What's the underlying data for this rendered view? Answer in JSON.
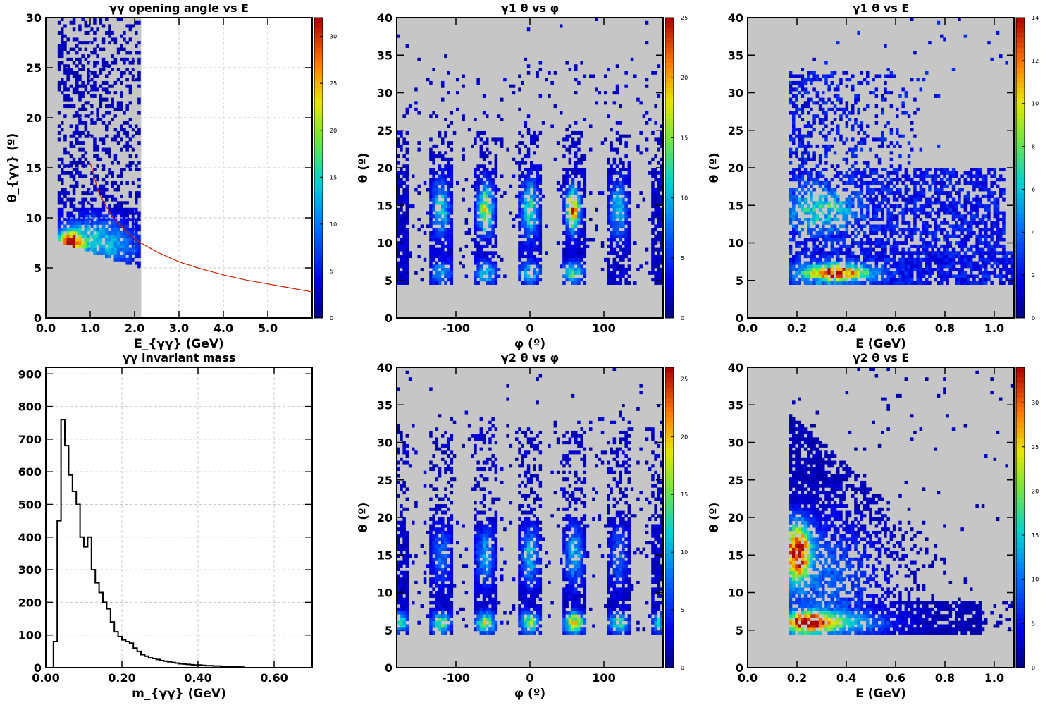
{
  "chart_data": [
    {
      "type": "heatmap",
      "title": "γγ opening angle vs E",
      "xlabel": "E_{γγ} (GeV)",
      "ylabel": "θ_{γγ} (º)",
      "xlim": [
        0,
        6
      ],
      "ylim": [
        0,
        30
      ],
      "xticks": [
        "0.0",
        "1.0",
        "2.0",
        "3.0",
        "4.0",
        "5.0"
      ],
      "yticks": [
        "0",
        "5",
        "10",
        "15",
        "20",
        "25",
        "30"
      ],
      "zmax": 32,
      "zticks": [
        "0",
        "5",
        "10",
        "15",
        "20",
        "25",
        "30"
      ],
      "filled_region": {
        "x": [
          0,
          2.15
        ]
      },
      "curve": {
        "color": "#cc2200",
        "x": [
          1.0,
          1.2,
          1.5,
          1.8,
          2.1,
          2.5,
          3.0,
          3.5,
          4.0,
          4.5,
          5.0,
          5.5,
          6.0
        ],
        "y": [
          15.5,
          12.4,
          10.1,
          8.7,
          7.6,
          6.6,
          5.6,
          4.9,
          4.3,
          3.8,
          3.4,
          3.0,
          2.6
        ]
      },
      "blobs": [
        {
          "x": 0.55,
          "y": 7.5,
          "amp": 30,
          "sx": 0.18,
          "sy": 0.8
        },
        {
          "x": 1.0,
          "y": 8.0,
          "amp": 10,
          "sx": 0.5,
          "sy": 1.5
        },
        {
          "x": 1.6,
          "y": 7.0,
          "amp": 6,
          "sx": 0.4,
          "sy": 1.5
        }
      ]
    },
    {
      "type": "heatmap",
      "title": "γ1 θ vs φ",
      "xlabel": "φ (º)",
      "ylabel": "θ (º)",
      "xlim": [
        -180,
        180
      ],
      "ylim": [
        0,
        40
      ],
      "xticks": [
        "-100",
        "0",
        "100"
      ],
      "yticks": [
        "0",
        "5",
        "10",
        "15",
        "20",
        "25",
        "30",
        "35",
        "40"
      ],
      "zmax": 25,
      "zticks": [
        "0",
        "5",
        "10",
        "15",
        "20",
        "25"
      ],
      "sector_centers": [
        -180,
        -120,
        -60,
        0,
        60,
        120,
        180
      ],
      "blobs": [
        {
          "x": -120,
          "y": 14.5,
          "amp": 10,
          "sx": 8,
          "sy": 2.5
        },
        {
          "x": -60,
          "y": 14.5,
          "amp": 16,
          "sx": 7,
          "sy": 2.2
        },
        {
          "x": 0,
          "y": 14.5,
          "amp": 11,
          "sx": 8,
          "sy": 2.5
        },
        {
          "x": 58,
          "y": 14.5,
          "amp": 22,
          "sx": 6,
          "sy": 1.8
        },
        {
          "x": 120,
          "y": 14.5,
          "amp": 9,
          "sx": 8,
          "sy": 2.5
        },
        {
          "x": -60,
          "y": 6,
          "amp": 10,
          "sx": 10,
          "sy": 1.0
        },
        {
          "x": 0,
          "y": 6,
          "amp": 9,
          "sx": 10,
          "sy": 1.0
        },
        {
          "x": 58,
          "y": 6,
          "amp": 11,
          "sx": 10,
          "sy": 1.0
        },
        {
          "x": -120,
          "y": 6,
          "amp": 8,
          "sx": 10,
          "sy": 1.0
        }
      ]
    },
    {
      "type": "heatmap",
      "title": "γ1 θ vs E",
      "xlabel": "E (GeV)",
      "ylabel": "θ (º)",
      "xlim": [
        0,
        1.08
      ],
      "ylim": [
        0,
        40
      ],
      "xticks": [
        "0.0",
        "0.2",
        "0.4",
        "0.6",
        "0.8",
        "1.0"
      ],
      "yticks": [
        "0",
        "5",
        "10",
        "15",
        "20",
        "25",
        "30",
        "35",
        "40"
      ],
      "zmax": 14,
      "zticks": [
        "0",
        "2",
        "4",
        "6",
        "8",
        "10",
        "12",
        "14"
      ],
      "blobs": [
        {
          "x": 0.36,
          "y": 6,
          "amp": 12,
          "sx": 0.1,
          "sy": 0.8
        },
        {
          "x": 0.3,
          "y": 14.5,
          "amp": 5,
          "sx": 0.1,
          "sy": 2.0
        }
      ]
    },
    {
      "type": "histogram",
      "title": "γγ invariant mass",
      "xlabel": "m_{γγ} (GeV)",
      "ylabel": "",
      "xlim": [
        0,
        0.7
      ],
      "ylim": [
        0,
        920
      ],
      "xticks": [
        "0.00",
        "0.20",
        "0.40",
        "0.60"
      ],
      "yticks": [
        "0",
        "100",
        "200",
        "300",
        "400",
        "500",
        "600",
        "700",
        "800",
        "900"
      ],
      "bin_width": 0.01,
      "x_start": 0.02,
      "values": [
        80,
        450,
        760,
        680,
        590,
        540,
        500,
        400,
        370,
        400,
        300,
        260,
        230,
        200,
        180,
        140,
        110,
        95,
        85,
        80,
        75,
        60,
        50,
        40,
        35,
        30,
        28,
        25,
        22,
        20,
        18,
        16,
        14,
        12,
        11,
        10,
        9,
        8,
        8,
        7,
        6,
        6,
        5,
        5,
        4,
        4,
        3,
        3,
        3,
        2
      ]
    },
    {
      "type": "heatmap",
      "title": "γ2 θ vs φ",
      "xlabel": "φ (º)",
      "ylabel": "θ (º)",
      "xlim": [
        -180,
        180
      ],
      "ylim": [
        0,
        40
      ],
      "xticks": [
        "-100",
        "0",
        "100"
      ],
      "yticks": [
        "0",
        "5",
        "10",
        "15",
        "20",
        "25",
        "30",
        "35",
        "40"
      ],
      "zmax": 26,
      "zticks": [
        "0",
        "5",
        "10",
        "15",
        "20",
        "25"
      ],
      "sector_centers": [
        -180,
        -120,
        -60,
        0,
        60,
        120,
        180
      ],
      "blobs": [
        {
          "x": -120,
          "y": 6,
          "amp": 14,
          "sx": 9,
          "sy": 0.9
        },
        {
          "x": -60,
          "y": 6,
          "amp": 16,
          "sx": 9,
          "sy": 0.9
        },
        {
          "x": 0,
          "y": 6,
          "amp": 15,
          "sx": 9,
          "sy": 0.9
        },
        {
          "x": 60,
          "y": 6,
          "amp": 20,
          "sx": 9,
          "sy": 0.9
        },
        {
          "x": 120,
          "y": 6,
          "amp": 12,
          "sx": 9,
          "sy": 0.9
        },
        {
          "x": -175,
          "y": 6,
          "amp": 14,
          "sx": 6,
          "sy": 0.9
        },
        {
          "x": 175,
          "y": 6,
          "amp": 10,
          "sx": 6,
          "sy": 0.9
        },
        {
          "x": -60,
          "y": 15,
          "amp": 8,
          "sx": 8,
          "sy": 2.5
        },
        {
          "x": 0,
          "y": 15,
          "amp": 9,
          "sx": 8,
          "sy": 2.5
        },
        {
          "x": 60,
          "y": 15,
          "amp": 9,
          "sx": 8,
          "sy": 2.5
        },
        {
          "x": -120,
          "y": 15,
          "amp": 6,
          "sx": 8,
          "sy": 2.5
        },
        {
          "x": 120,
          "y": 15,
          "amp": 6,
          "sx": 8,
          "sy": 2.5
        }
      ]
    },
    {
      "type": "heatmap",
      "title": "γ2 θ vs E",
      "xlabel": "E (GeV)",
      "ylabel": "θ (º)",
      "xlim": [
        0,
        1.08
      ],
      "ylim": [
        0,
        40
      ],
      "xticks": [
        "0.0",
        "0.2",
        "0.4",
        "0.6",
        "0.8",
        "1.0"
      ],
      "yticks": [
        "0",
        "5",
        "10",
        "15",
        "20",
        "25",
        "30",
        "35",
        "40"
      ],
      "zmax": 34,
      "zticks": [
        "0",
        "5",
        "10",
        "15",
        "20",
        "25",
        "30"
      ],
      "blobs": [
        {
          "x": 0.2,
          "y": 15.5,
          "amp": 32,
          "sx": 0.035,
          "sy": 2.5
        },
        {
          "x": 0.24,
          "y": 6,
          "amp": 26,
          "sx": 0.07,
          "sy": 0.9
        },
        {
          "x": 0.35,
          "y": 6,
          "amp": 12,
          "sx": 0.15,
          "sy": 1.0
        },
        {
          "x": 0.3,
          "y": 12,
          "amp": 8,
          "sx": 0.15,
          "sy": 5.0
        }
      ]
    }
  ]
}
